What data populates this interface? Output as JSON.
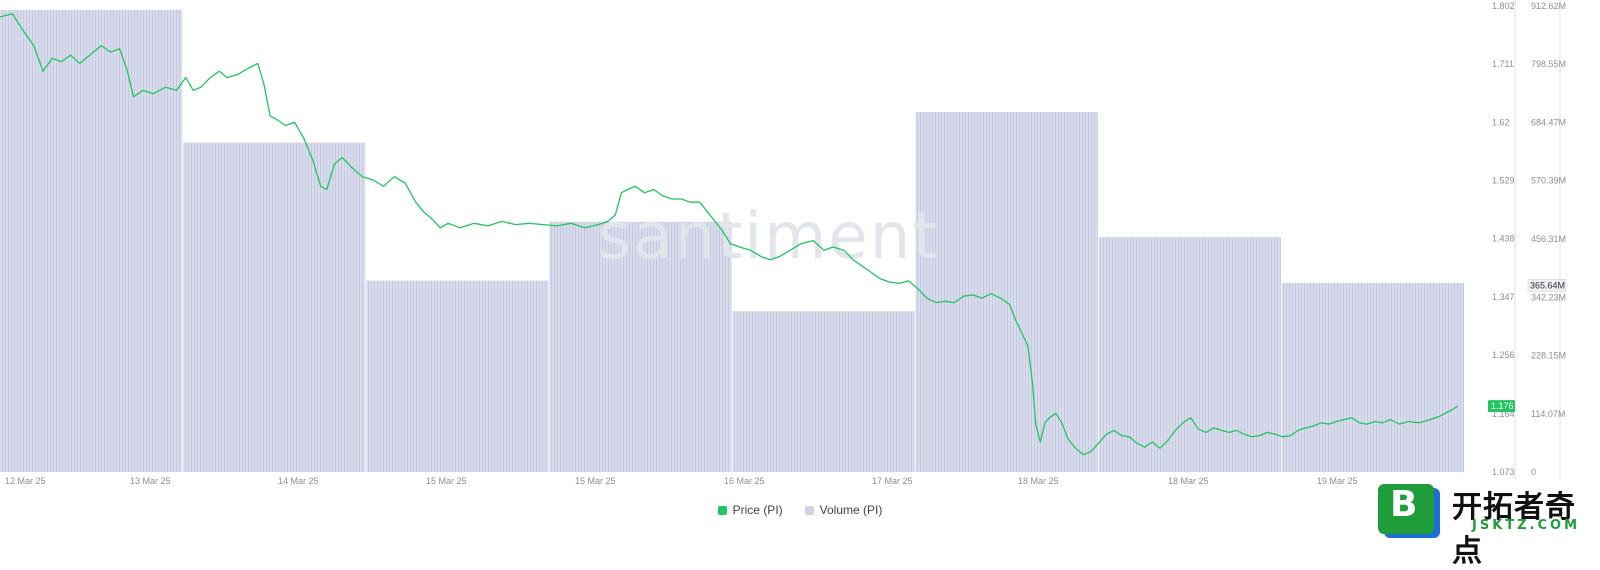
{
  "watermark": "santiment",
  "legend": {
    "price_label": "Price (PI)",
    "volume_label": "Volume (PI)"
  },
  "logo": {
    "letter": "B",
    "name": "开拓者奇点",
    "url": "JSKTZ.COM"
  },
  "colors": {
    "price": "#22c55e",
    "volume": "#d9dcec",
    "volume_stripe": "#c5c9e0",
    "axis": "#8a8f9c"
  },
  "chart_data": {
    "type": "line+bar",
    "x_ticks": [
      "12 Mar 25",
      "13 Mar 25",
      "14 Mar 25",
      "15 Mar 25",
      "15 Mar 25",
      "16 Mar 25",
      "17 Mar 25",
      "18 Mar 25",
      "18 Mar 25",
      "19 Mar 25"
    ],
    "price_axis": {
      "ticks": [
        "1.802",
        "1.711",
        "1.62",
        "1.529",
        "1.438",
        "1.347",
        "1.256",
        "1.164",
        "1.073"
      ],
      "range": [
        1.073,
        1.802
      ]
    },
    "volume_axis": {
      "ticks": [
        "912.62M",
        "798.55M",
        "684.47M",
        "570.39M",
        "456.31M",
        "342.23M",
        "228.15M",
        "114.07M",
        "0"
      ],
      "range": [
        0,
        912.62
      ]
    },
    "current_price": "1.176",
    "current_volume": "365.64M",
    "volume_series": {
      "name": "Volume (PI)",
      "unit": "M",
      "values": [
        905,
        645,
        375,
        490,
        315,
        705,
        460,
        370
      ]
    },
    "price_series": {
      "name": "Price (PI)",
      "points": [
        [
          0.0,
          1.785
        ],
        [
          0.008,
          1.79
        ],
        [
          0.016,
          1.76
        ],
        [
          0.022,
          1.74
        ],
        [
          0.028,
          1.7
        ],
        [
          0.034,
          1.72
        ],
        [
          0.04,
          1.715
        ],
        [
          0.046,
          1.725
        ],
        [
          0.052,
          1.712
        ],
        [
          0.06,
          1.728
        ],
        [
          0.066,
          1.74
        ],
        [
          0.072,
          1.73
        ],
        [
          0.078,
          1.735
        ],
        [
          0.083,
          1.7
        ],
        [
          0.087,
          1.66
        ],
        [
          0.093,
          1.67
        ],
        [
          0.1,
          1.665
        ],
        [
          0.108,
          1.675
        ],
        [
          0.115,
          1.67
        ],
        [
          0.121,
          1.69
        ],
        [
          0.126,
          1.67
        ],
        [
          0.131,
          1.675
        ],
        [
          0.137,
          1.69
        ],
        [
          0.143,
          1.7
        ],
        [
          0.148,
          1.69
        ],
        [
          0.155,
          1.695
        ],
        [
          0.162,
          1.705
        ],
        [
          0.168,
          1.712
        ],
        [
          0.172,
          1.68
        ],
        [
          0.176,
          1.63
        ],
        [
          0.18,
          1.625
        ],
        [
          0.186,
          1.615
        ],
        [
          0.192,
          1.62
        ],
        [
          0.198,
          1.595
        ],
        [
          0.204,
          1.56
        ],
        [
          0.209,
          1.52
        ],
        [
          0.213,
          1.515
        ],
        [
          0.218,
          1.555
        ],
        [
          0.223,
          1.565
        ],
        [
          0.229,
          1.55
        ],
        [
          0.236,
          1.535
        ],
        [
          0.243,
          1.53
        ],
        [
          0.25,
          1.52
        ],
        [
          0.257,
          1.535
        ],
        [
          0.264,
          1.525
        ],
        [
          0.271,
          1.495
        ],
        [
          0.276,
          1.48
        ],
        [
          0.281,
          1.47
        ],
        [
          0.287,
          1.455
        ],
        [
          0.292,
          1.462
        ],
        [
          0.3,
          1.455
        ],
        [
          0.309,
          1.462
        ],
        [
          0.318,
          1.458
        ],
        [
          0.327,
          1.465
        ],
        [
          0.336,
          1.46
        ],
        [
          0.345,
          1.462
        ],
        [
          0.354,
          1.46
        ],
        [
          0.363,
          1.458
        ],
        [
          0.372,
          1.462
        ],
        [
          0.381,
          1.455
        ],
        [
          0.39,
          1.46
        ],
        [
          0.396,
          1.465
        ],
        [
          0.401,
          1.475
        ],
        [
          0.405,
          1.51
        ],
        [
          0.409,
          1.515
        ],
        [
          0.414,
          1.52
        ],
        [
          0.42,
          1.51
        ],
        [
          0.426,
          1.515
        ],
        [
          0.432,
          1.505
        ],
        [
          0.438,
          1.5
        ],
        [
          0.444,
          1.5
        ],
        [
          0.45,
          1.495
        ],
        [
          0.456,
          1.495
        ],
        [
          0.461,
          1.48
        ],
        [
          0.466,
          1.465
        ],
        [
          0.471,
          1.45
        ],
        [
          0.476,
          1.43
        ],
        [
          0.482,
          1.425
        ],
        [
          0.489,
          1.42
        ],
        [
          0.496,
          1.41
        ],
        [
          0.502,
          1.405
        ],
        [
          0.508,
          1.41
        ],
        [
          0.515,
          1.42
        ],
        [
          0.522,
          1.43
        ],
        [
          0.53,
          1.435
        ],
        [
          0.537,
          1.42
        ],
        [
          0.543,
          1.425
        ],
        [
          0.55,
          1.42
        ],
        [
          0.556,
          1.405
        ],
        [
          0.562,
          1.395
        ],
        [
          0.568,
          1.385
        ],
        [
          0.574,
          1.375
        ],
        [
          0.58,
          1.37
        ],
        [
          0.586,
          1.368
        ],
        [
          0.592,
          1.372
        ],
        [
          0.598,
          1.36
        ],
        [
          0.604,
          1.345
        ],
        [
          0.61,
          1.338
        ],
        [
          0.616,
          1.34
        ],
        [
          0.622,
          1.338
        ],
        [
          0.628,
          1.348
        ],
        [
          0.634,
          1.35
        ],
        [
          0.64,
          1.345
        ],
        [
          0.646,
          1.352
        ],
        [
          0.652,
          1.345
        ],
        [
          0.658,
          1.335
        ],
        [
          0.662,
          1.31
        ],
        [
          0.666,
          1.29
        ],
        [
          0.67,
          1.27
        ],
        [
          0.673,
          1.21
        ],
        [
          0.675,
          1.148
        ],
        [
          0.678,
          1.12
        ],
        [
          0.681,
          1.15
        ],
        [
          0.684,
          1.158
        ],
        [
          0.688,
          1.165
        ],
        [
          0.692,
          1.15
        ],
        [
          0.696,
          1.125
        ],
        [
          0.701,
          1.11
        ],
        [
          0.706,
          1.1
        ],
        [
          0.711,
          1.105
        ],
        [
          0.716,
          1.118
        ],
        [
          0.721,
          1.132
        ],
        [
          0.726,
          1.138
        ],
        [
          0.731,
          1.13
        ],
        [
          0.736,
          1.128
        ],
        [
          0.741,
          1.118
        ],
        [
          0.746,
          1.112
        ],
        [
          0.751,
          1.12
        ],
        [
          0.756,
          1.11
        ],
        [
          0.761,
          1.122
        ],
        [
          0.766,
          1.138
        ],
        [
          0.771,
          1.15
        ],
        [
          0.776,
          1.158
        ],
        [
          0.781,
          1.14
        ],
        [
          0.786,
          1.135
        ],
        [
          0.791,
          1.142
        ],
        [
          0.796,
          1.138
        ],
        [
          0.801,
          1.135
        ],
        [
          0.806,
          1.138
        ],
        [
          0.811,
          1.132
        ],
        [
          0.816,
          1.128
        ],
        [
          0.821,
          1.13
        ],
        [
          0.826,
          1.135
        ],
        [
          0.831,
          1.132
        ],
        [
          0.836,
          1.128
        ],
        [
          0.841,
          1.13
        ],
        [
          0.846,
          1.138
        ],
        [
          0.851,
          1.142
        ],
        [
          0.856,
          1.145
        ],
        [
          0.861,
          1.15
        ],
        [
          0.866,
          1.148
        ],
        [
          0.871,
          1.152
        ],
        [
          0.876,
          1.155
        ],
        [
          0.881,
          1.158
        ],
        [
          0.886,
          1.15
        ],
        [
          0.891,
          1.148
        ],
        [
          0.896,
          1.152
        ],
        [
          0.901,
          1.15
        ],
        [
          0.906,
          1.155
        ],
        [
          0.912,
          1.148
        ],
        [
          0.918,
          1.152
        ],
        [
          0.925,
          1.15
        ],
        [
          0.932,
          1.155
        ],
        [
          0.938,
          1.16
        ],
        [
          0.942,
          1.165
        ],
        [
          0.946,
          1.17
        ],
        [
          0.95,
          1.176
        ]
      ]
    }
  }
}
